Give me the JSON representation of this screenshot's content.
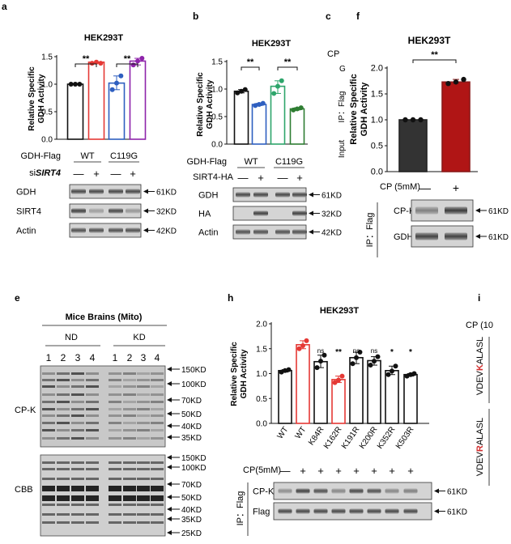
{
  "panels": {
    "a": {
      "letter": "a",
      "title": "HEK293T",
      "ylabel1": "Relative Specific",
      "ylabel2": "GDH Activity",
      "yticks": [
        "0.0",
        "0.5",
        "1.0",
        "1.5"
      ],
      "sig": [
        "**",
        "**"
      ],
      "row1_label": "GDH-Flag",
      "groups": [
        "WT",
        "C119G"
      ],
      "row2_label_pre": "si",
      "row2_label_ital": "SIRT4",
      "signs": [
        "—",
        "+",
        "—",
        "+"
      ],
      "blots": [
        {
          "label": "GDH",
          "size": "61KD"
        },
        {
          "label": "SIRT4",
          "size": "32KD"
        },
        {
          "label": "Actin",
          "size": "42KD"
        }
      ],
      "colors": [
        "#111111",
        "#e53935",
        "#2e5fc0",
        "#8e24aa"
      ]
    },
    "b": {
      "letter": "b",
      "title": "HEK293T",
      "ylabel1": "Relative Specific",
      "ylabel2": "GDH Activity",
      "yticks": [
        "0.0",
        "0.5",
        "1.0",
        "1.5"
      ],
      "sig": [
        "**",
        "**"
      ],
      "row1_label": "GDH-Flag",
      "groups": [
        "WT",
        "C119G"
      ],
      "row2_label": "SIRT4-HA",
      "signs": [
        "—",
        "+",
        "—",
        "+"
      ],
      "blots": [
        {
          "label": "GDH",
          "size": "61KD"
        },
        {
          "label": "HA",
          "size": "32KD"
        },
        {
          "label": "Actin",
          "size": "42KD"
        }
      ],
      "colors": [
        "#111111",
        "#2e5fc0",
        "#2ea56b",
        "#2e7d32"
      ]
    },
    "c": {
      "letter": "c",
      "label_cp": "CP",
      "label_c": "G",
      "label_ip": "IP：Flag",
      "label_input": "Input"
    },
    "f": {
      "letter": "f",
      "title": "HEK293T",
      "ylabel1": "Relative Specific",
      "ylabel2": "GDH Activity",
      "yticks": [
        "0.0",
        "0.5",
        "1.0",
        "1.5",
        "2.0"
      ],
      "sig": "**",
      "cp_label": "CP (5mM)",
      "signs": [
        "—",
        "+"
      ],
      "ip_label": "IP：Flag",
      "blots": [
        {
          "label": "CP-K",
          "size": "61KD"
        },
        {
          "label": "GDH",
          "size": "61KD"
        }
      ]
    },
    "e": {
      "letter": "e",
      "title": "Mice Brains (Mito)",
      "groups": [
        "ND",
        "KD"
      ],
      "lanes": [
        "1",
        "2",
        "3",
        "4",
        "1",
        "2",
        "3",
        "4"
      ],
      "blot1_label": "CP-K",
      "blot2_label": "CBB",
      "markers1": [
        "150KD",
        "100KD",
        "70KD",
        "50KD",
        "40KD",
        "35KD"
      ],
      "markers2": [
        "150KD",
        "100KD",
        "70KD",
        "50KD",
        "40KD",
        "35KD",
        "25KD"
      ]
    },
    "h": {
      "letter": "h",
      "title": "HEK293T",
      "ylabel1": "Relative Specific",
      "ylabel2": "GDH Activity",
      "yticks": [
        "0.0",
        "0.5",
        "1.0",
        "1.5",
        "2.0"
      ],
      "sig": [
        "",
        "",
        "ns",
        "**",
        "ns",
        "ns",
        "*",
        "*"
      ],
      "xlabels": [
        "WT",
        "WT",
        "K84R",
        "K162R",
        "K191R",
        "K200R",
        "K352R",
        "K503R"
      ],
      "cp_label": "CP(5mM)",
      "signs": [
        "—",
        "+",
        "+",
        "+",
        "+",
        "+",
        "+",
        "+"
      ],
      "ip_label": "IP：Flag",
      "blots": [
        {
          "label": "CP-K",
          "size": "61KD"
        },
        {
          "label": "Flag",
          "size": "61KD"
        }
      ]
    },
    "i": {
      "letter": "i",
      "cp_label": "CP (10",
      "seq1_pre": "VDEV",
      "seq1_mark": "K",
      "seq1_post": "ALASL",
      "seq2_pre": "VDEV",
      "seq2_mark": "R",
      "seq2_post": "ALASL"
    }
  },
  "chart_data": [
    {
      "type": "bar",
      "panel": "a",
      "title": "HEK293T",
      "ylabel": "Relative Specific GDH Activity",
      "ylim": [
        0,
        1.5
      ],
      "categories": [
        "WT -",
        "WT +",
        "C119G -",
        "C119G +"
      ],
      "values": [
        1.0,
        1.4,
        1.02,
        1.42
      ],
      "points": [
        [
          1.0,
          1.0,
          1.0
        ],
        [
          1.38,
          1.4,
          1.38
        ],
        [
          0.9,
          1.02,
          1.15
        ],
        [
          1.35,
          1.42,
          1.47
        ]
      ]
    },
    {
      "type": "bar",
      "panel": "b",
      "title": "HEK293T",
      "ylabel": "Relative Specific GDH Activity",
      "ylim": [
        0,
        1.5
      ],
      "categories": [
        "WT -",
        "WT +",
        "C119G -",
        "C119G +"
      ],
      "values": [
        0.96,
        0.72,
        1.05,
        0.64
      ],
      "points": [
        [
          0.93,
          0.96,
          0.99
        ],
        [
          0.7,
          0.72,
          0.74
        ],
        [
          0.92,
          1.05,
          1.15
        ],
        [
          0.62,
          0.64,
          0.66
        ]
      ]
    },
    {
      "type": "bar",
      "panel": "f",
      "title": "HEK293T",
      "ylabel": "Relative Specific GDH Activity",
      "ylim": [
        0,
        2.0
      ],
      "categories": [
        "CP -",
        "CP +"
      ],
      "values": [
        1.0,
        1.73
      ],
      "points": [
        [
          1.0,
          1.0,
          1.0
        ],
        [
          1.7,
          1.73,
          1.78
        ]
      ]
    },
    {
      "type": "bar",
      "panel": "h",
      "title": "HEK293T",
      "ylabel": "Relative Specific GDH Activity",
      "ylim": [
        0,
        2.0
      ],
      "categories": [
        "WT",
        "WT",
        "K84R",
        "K162R",
        "K191R",
        "K200R",
        "K352R",
        "K503R"
      ],
      "values": [
        1.06,
        1.58,
        1.24,
        0.88,
        1.32,
        1.26,
        1.06,
        0.98
      ],
      "points": [
        [
          1.03,
          1.06,
          1.08
        ],
        [
          1.5,
          1.56,
          1.66
        ],
        [
          1.12,
          1.25,
          1.37
        ],
        [
          0.82,
          0.87,
          0.95
        ],
        [
          1.2,
          1.32,
          1.43
        ],
        [
          1.17,
          1.25,
          1.34
        ],
        [
          0.98,
          1.05,
          1.15
        ],
        [
          0.95,
          0.98,
          1.0
        ]
      ]
    }
  ]
}
